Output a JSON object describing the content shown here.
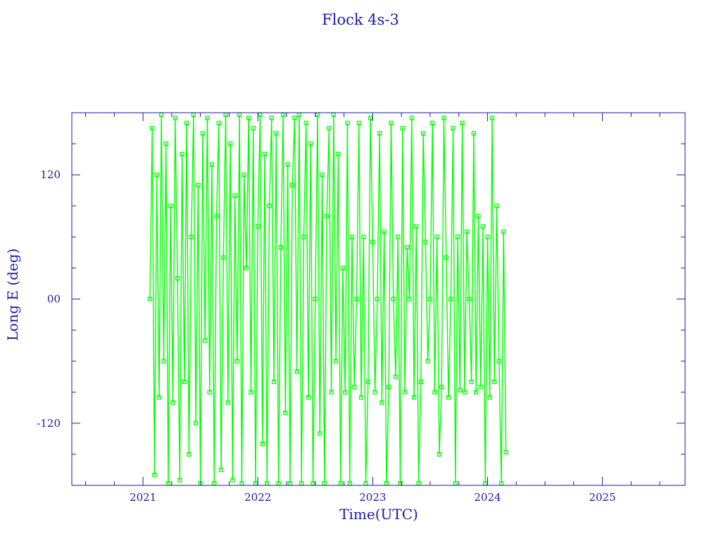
{
  "chart_data": {
    "type": "line",
    "title": "Flock 4s-3",
    "xlabel": "Time(UTC)",
    "ylabel": "Long E (deg)",
    "xlim": [
      2020.38,
      2025.72
    ],
    "ylim": [
      -180,
      180
    ],
    "xticks": [
      2021,
      2022,
      2023,
      2024,
      2025
    ],
    "xtick_labels": [
      "2021",
      "2022",
      "2023",
      "2024",
      "2025"
    ],
    "yticks": [
      120,
      0,
      -120
    ],
    "ytick_labels": [
      "120",
      "00",
      "-120"
    ],
    "grid": false,
    "marker": "hollow-square",
    "colors": {
      "series": "#00ff00",
      "axes": "#1a1aa6"
    },
    "series": [
      {
        "x": [
          2021.06,
          2021.08,
          2021.1,
          2021.12,
          2021.14,
          2021.16,
          2021.18,
          2021.2,
          2021.22,
          2021.24,
          2021.26,
          2021.28,
          2021.3,
          2021.32,
          2021.34,
          2021.36,
          2021.38,
          2021.4,
          2021.42,
          2021.44,
          2021.46,
          2021.48,
          2021.5,
          2021.52,
          2021.54,
          2021.56,
          2021.58,
          2021.6,
          2021.62,
          2021.64,
          2021.66,
          2021.68,
          2021.7,
          2021.72,
          2021.74,
          2021.76,
          2021.78,
          2021.8,
          2021.82,
          2021.84,
          2021.86,
          2021.88,
          2021.9,
          2021.92,
          2021.94,
          2021.96,
          2021.98,
          2022.0,
          2022.02,
          2022.04,
          2022.06,
          2022.08,
          2022.1,
          2022.12,
          2022.14,
          2022.16,
          2022.18,
          2022.2,
          2022.22,
          2022.24,
          2022.26,
          2022.28,
          2022.3,
          2022.32,
          2022.34,
          2022.36,
          2022.38,
          2022.4,
          2022.42,
          2022.44,
          2022.46,
          2022.48,
          2022.5,
          2022.52,
          2022.54,
          2022.56,
          2022.58,
          2022.6,
          2022.62,
          2022.64,
          2022.66,
          2022.68,
          2022.7,
          2022.72,
          2022.74,
          2022.76,
          2022.78,
          2022.8,
          2022.82,
          2022.84,
          2022.86,
          2022.88,
          2022.9,
          2022.92,
          2022.94,
          2022.96,
          2022.98,
          2023.0,
          2023.02,
          2023.04,
          2023.06,
          2023.08,
          2023.1,
          2023.12,
          2023.14,
          2023.16,
          2023.18,
          2023.2,
          2023.22,
          2023.24,
          2023.26,
          2023.28,
          2023.3,
          2023.32,
          2023.34,
          2023.36,
          2023.38,
          2023.4,
          2023.42,
          2023.44,
          2023.46,
          2023.48,
          2023.5,
          2023.52,
          2023.54,
          2023.56,
          2023.58,
          2023.6,
          2023.62,
          2023.64,
          2023.66,
          2023.68,
          2023.7,
          2023.72,
          2023.74,
          2023.76,
          2023.78,
          2023.8,
          2023.82,
          2023.84,
          2023.86,
          2023.88,
          2023.9,
          2023.92,
          2023.94,
          2023.96,
          2023.98,
          2024.0,
          2024.02,
          2024.04,
          2024.06,
          2024.08,
          2024.1,
          2024.12,
          2024.14,
          2024.16
        ],
        "y": [
          0,
          165,
          -170,
          120,
          -95,
          178,
          -60,
          150,
          -178,
          90,
          -100,
          175,
          20,
          -175,
          140,
          -80,
          170,
          -150,
          60,
          178,
          -120,
          110,
          -178,
          160,
          -40,
          175,
          -90,
          130,
          -178,
          80,
          170,
          -165,
          40,
          178,
          -100,
          150,
          -175,
          100,
          -60,
          178,
          -178,
          120,
          30,
          175,
          -90,
          165,
          -178,
          70,
          178,
          -140,
          140,
          -178,
          90,
          175,
          -80,
          160,
          -178,
          50,
          178,
          -110,
          130,
          -178,
          110,
          175,
          -70,
          178,
          -178,
          60,
          170,
          -95,
          150,
          -178,
          0,
          178,
          -130,
          120,
          -178,
          80,
          165,
          -90,
          178,
          -60,
          140,
          -178,
          30,
          -90,
          170,
          -178,
          60,
          -85,
          0,
          170,
          -95,
          60,
          -178,
          -80,
          175,
          55,
          -90,
          0,
          160,
          -100,
          65,
          -178,
          -85,
          170,
          0,
          -75,
          60,
          -178,
          165,
          -90,
          50,
          0,
          175,
          -95,
          70,
          -178,
          -80,
          160,
          55,
          -60,
          0,
          170,
          -90,
          60,
          -150,
          -85,
          175,
          40,
          -95,
          0,
          165,
          -178,
          60,
          -88,
          170,
          -90,
          65,
          0,
          -80,
          160,
          -90,
          80,
          -85,
          70,
          -178,
          60,
          -95,
          175,
          -80,
          90,
          -60,
          -178,
          65,
          -148
        ]
      }
    ]
  }
}
